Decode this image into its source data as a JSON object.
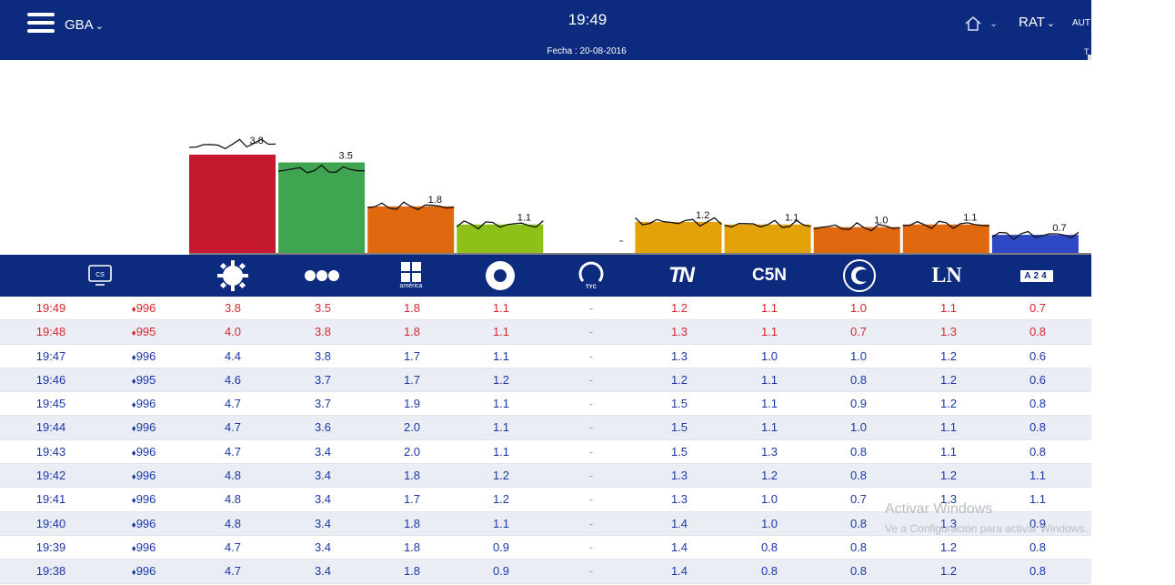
{
  "header": {
    "region": "GBA",
    "time": "19:49",
    "fecha": "Fecha : 20-08-2016",
    "metric": "RAT",
    "auto": "AUT",
    "tlabel": "T"
  },
  "chart_data": {
    "type": "bar",
    "categories": [
      "Telefe",
      "El Trece",
      "América",
      "TV Pública",
      "TyC",
      "TN",
      "C5N",
      "Crónica",
      "LN",
      "A24"
    ],
    "values": [
      3.8,
      3.5,
      1.8,
      1.1,
      0.0,
      1.2,
      1.1,
      1.0,
      1.1,
      0.7
    ],
    "labels": [
      "3.8",
      "3.5",
      "1.8",
      "1.1",
      "",
      "1.2",
      "1.1",
      "1.0",
      "1.1",
      "0.7"
    ],
    "colors": [
      "#c4192f",
      "#3fa550",
      "#e0690f",
      "#8dc11a",
      "#9ea3ad",
      "#e3a10a",
      "#e3a10a",
      "#e0690f",
      "#e0690f",
      "#2e48c5"
    ],
    "ylim": [
      0,
      4.8
    ]
  },
  "channels": [
    {
      "name": "tv-screen-icon",
      "label": ""
    },
    {
      "name": "telefe-logo",
      "label": ""
    },
    {
      "name": "eltrece-logo",
      "label": ""
    },
    {
      "name": "america-logo",
      "label": "américa"
    },
    {
      "name": "tvpublica-logo",
      "label": ""
    },
    {
      "name": "tyc-logo",
      "label": "TYC"
    },
    {
      "name": "tn-logo",
      "label": "TN"
    },
    {
      "name": "c5n-logo",
      "label": "C5N"
    },
    {
      "name": "cronica-logo",
      "label": ""
    },
    {
      "name": "ln-logo",
      "label": "LN"
    },
    {
      "name": "a24-logo",
      "label": "A24"
    }
  ],
  "table": {
    "rows": [
      {
        "time": "19:49",
        "enc": "996",
        "color": "red",
        "vals": [
          "3.8",
          "3.5",
          "1.8",
          "1.1",
          "-",
          "1.2",
          "1.1",
          "1.0",
          "1.1",
          "0.7"
        ]
      },
      {
        "time": "19:48",
        "enc": "995",
        "color": "red",
        "vals": [
          "4.0",
          "3.8",
          "1.8",
          "1.1",
          "-",
          "1.3",
          "1.1",
          "0.7",
          "1.3",
          "0.8"
        ]
      },
      {
        "time": "19:47",
        "enc": "996",
        "color": "blue",
        "vals": [
          "4.4",
          "3.8",
          "1.7",
          "1.1",
          "-",
          "1.3",
          "1.0",
          "1.0",
          "1.2",
          "0.6"
        ]
      },
      {
        "time": "19:46",
        "enc": "995",
        "color": "blue",
        "vals": [
          "4.6",
          "3.7",
          "1.7",
          "1.2",
          "-",
          "1.2",
          "1.1",
          "0.8",
          "1.2",
          "0.6"
        ]
      },
      {
        "time": "19:45",
        "enc": "996",
        "color": "blue",
        "vals": [
          "4.7",
          "3.7",
          "1.9",
          "1.1",
          "-",
          "1.5",
          "1.1",
          "0.9",
          "1.2",
          "0.8"
        ]
      },
      {
        "time": "19:44",
        "enc": "996",
        "color": "blue",
        "vals": [
          "4.7",
          "3.6",
          "2.0",
          "1.1",
          "-",
          "1.5",
          "1.1",
          "1.0",
          "1.1",
          "0.8"
        ]
      },
      {
        "time": "19:43",
        "enc": "996",
        "color": "blue",
        "vals": [
          "4.7",
          "3.4",
          "2.0",
          "1.1",
          "-",
          "1.5",
          "1.3",
          "0.8",
          "1.1",
          "0.8"
        ]
      },
      {
        "time": "19:42",
        "enc": "996",
        "color": "blue",
        "vals": [
          "4.8",
          "3.4",
          "1.8",
          "1.2",
          "-",
          "1.3",
          "1.2",
          "0.8",
          "1.2",
          "1.1"
        ]
      },
      {
        "time": "19:41",
        "enc": "996",
        "color": "blue",
        "vals": [
          "4.8",
          "3.4",
          "1.7",
          "1.2",
          "-",
          "1.3",
          "1.0",
          "0.7",
          "1.3",
          "1.1"
        ]
      },
      {
        "time": "19:40",
        "enc": "996",
        "color": "blue",
        "vals": [
          "4.8",
          "3.4",
          "1.8",
          "1.1",
          "-",
          "1.4",
          "1.0",
          "0.8",
          "1.3",
          "0.9"
        ]
      },
      {
        "time": "19:39",
        "enc": "996",
        "color": "blue",
        "vals": [
          "4.7",
          "3.4",
          "1.8",
          "0.9",
          "-",
          "1.4",
          "0.8",
          "0.8",
          "1.2",
          "0.8"
        ]
      },
      {
        "time": "19:38",
        "enc": "996",
        "color": "blue",
        "vals": [
          "4.7",
          "3.4",
          "1.8",
          "0.9",
          "-",
          "1.4",
          "0.8",
          "0.8",
          "1.2",
          "0.8"
        ]
      }
    ]
  },
  "watermark": {
    "line1": "Activar Windows",
    "line2": "Ve a Configuración para activar Windows."
  }
}
